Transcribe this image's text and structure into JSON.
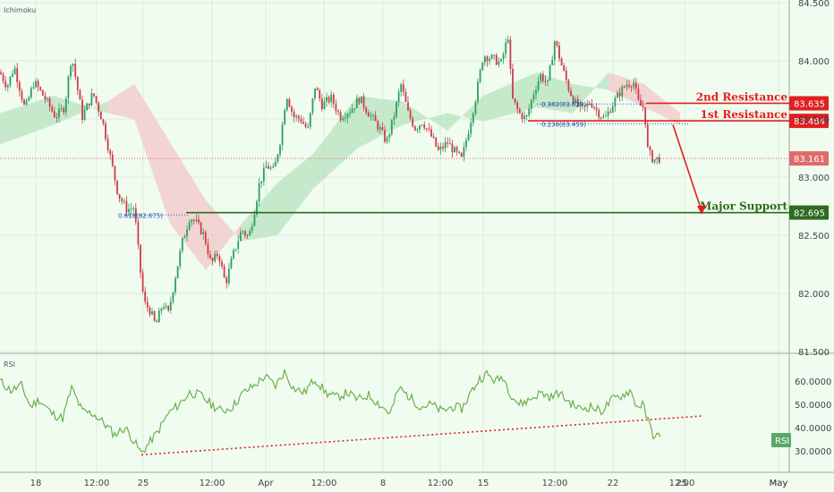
{
  "indicator_main": "Ichimoku",
  "indicator_sub": "RSI",
  "colors": {
    "background": "#f0fcf0",
    "bull": "#2e9e5e",
    "bear": "#cf3b46",
    "cloud_bull": "#b8e3c0",
    "cloud_bear": "#f3c9c9",
    "resistance": "#e02020",
    "support": "#2f6b1f",
    "rsi_line": "#6ab04c",
    "fib_dots": "#2a5bd7"
  },
  "chart_data": [
    {
      "type": "candlestick",
      "title": "",
      "legend": "Ichimoku",
      "ylim": [
        81.5,
        84.5
      ],
      "y_ticks": [
        "81.500",
        "82.000",
        "82.500",
        "83.000",
        "83.500",
        "84.000",
        "84.500"
      ],
      "x_tick_labels": [
        "18",
        "12:00",
        "25",
        "12:00",
        "Apr",
        "12:00",
        "8",
        "12:00",
        "15",
        "12:00",
        "22",
        "12:00",
        "25",
        "May"
      ],
      "anchors": [
        {
          "x": 0,
          "y": 83.9
        },
        {
          "x": 8,
          "y": 83.78
        },
        {
          "x": 16,
          "y": 83.95
        },
        {
          "x": 28,
          "y": 83.58
        },
        {
          "x": 38,
          "y": 83.82
        },
        {
          "x": 50,
          "y": 83.68
        },
        {
          "x": 62,
          "y": 83.52
        },
        {
          "x": 72,
          "y": 83.6
        },
        {
          "x": 80,
          "y": 84.05
        },
        {
          "x": 92,
          "y": 83.52
        },
        {
          "x": 104,
          "y": 83.72
        },
        {
          "x": 114,
          "y": 83.5
        },
        {
          "x": 122,
          "y": 83.22
        },
        {
          "x": 132,
          "y": 82.85
        },
        {
          "x": 142,
          "y": 82.72
        },
        {
          "x": 150,
          "y": 82.74
        },
        {
          "x": 156,
          "y": 82.25
        },
        {
          "x": 161,
          "y": 81.92
        },
        {
          "x": 168,
          "y": 81.85
        },
        {
          "x": 174,
          "y": 81.72
        },
        {
          "x": 182,
          "y": 81.92
        },
        {
          "x": 188,
          "y": 81.82
        },
        {
          "x": 196,
          "y": 82.15
        },
        {
          "x": 204,
          "y": 82.45
        },
        {
          "x": 212,
          "y": 82.66
        },
        {
          "x": 220,
          "y": 82.6
        },
        {
          "x": 228,
          "y": 82.5
        },
        {
          "x": 236,
          "y": 82.25
        },
        {
          "x": 244,
          "y": 82.35
        },
        {
          "x": 252,
          "y": 82.08
        },
        {
          "x": 260,
          "y": 82.32
        },
        {
          "x": 270,
          "y": 82.55
        },
        {
          "x": 278,
          "y": 82.48
        },
        {
          "x": 284,
          "y": 82.7
        },
        {
          "x": 290,
          "y": 82.95
        },
        {
          "x": 298,
          "y": 83.1
        },
        {
          "x": 306,
          "y": 83.05
        },
        {
          "x": 314,
          "y": 83.35
        },
        {
          "x": 320,
          "y": 83.72
        },
        {
          "x": 328,
          "y": 83.52
        },
        {
          "x": 336,
          "y": 83.5
        },
        {
          "x": 344,
          "y": 83.4
        },
        {
          "x": 352,
          "y": 83.78
        },
        {
          "x": 360,
          "y": 83.62
        },
        {
          "x": 370,
          "y": 83.68
        },
        {
          "x": 380,
          "y": 83.52
        },
        {
          "x": 392,
          "y": 83.58
        },
        {
          "x": 402,
          "y": 83.68
        },
        {
          "x": 412,
          "y": 83.55
        },
        {
          "x": 424,
          "y": 83.42
        },
        {
          "x": 432,
          "y": 83.3
        },
        {
          "x": 440,
          "y": 83.52
        },
        {
          "x": 448,
          "y": 83.8
        },
        {
          "x": 456,
          "y": 83.55
        },
        {
          "x": 464,
          "y": 83.42
        },
        {
          "x": 472,
          "y": 83.48
        },
        {
          "x": 482,
          "y": 83.35
        },
        {
          "x": 490,
          "y": 83.22
        },
        {
          "x": 500,
          "y": 83.3
        },
        {
          "x": 508,
          "y": 83.22
        },
        {
          "x": 516,
          "y": 83.15
        },
        {
          "x": 524,
          "y": 83.42
        },
        {
          "x": 532,
          "y": 83.7
        },
        {
          "x": 540,
          "y": 84.05
        },
        {
          "x": 550,
          "y": 84.02
        },
        {
          "x": 560,
          "y": 83.98
        },
        {
          "x": 568,
          "y": 84.22
        },
        {
          "x": 572,
          "y": 83.68
        },
        {
          "x": 580,
          "y": 83.55
        },
        {
          "x": 588,
          "y": 83.5
        },
        {
          "x": 596,
          "y": 83.72
        },
        {
          "x": 604,
          "y": 83.88
        },
        {
          "x": 612,
          "y": 83.8
        },
        {
          "x": 620,
          "y": 84.18
        },
        {
          "x": 628,
          "y": 83.95
        },
        {
          "x": 636,
          "y": 83.75
        },
        {
          "x": 644,
          "y": 83.62
        },
        {
          "x": 652,
          "y": 83.58
        },
        {
          "x": 660,
          "y": 83.65
        },
        {
          "x": 668,
          "y": 83.56
        },
        {
          "x": 676,
          "y": 83.5
        },
        {
          "x": 684,
          "y": 83.62
        },
        {
          "x": 692,
          "y": 83.72
        },
        {
          "x": 700,
          "y": 83.8
        },
        {
          "x": 708,
          "y": 83.82
        },
        {
          "x": 714,
          "y": 83.62
        },
        {
          "x": 720,
          "y": 83.6
        },
        {
          "x": 724,
          "y": 83.22
        },
        {
          "x": 730,
          "y": 83.15
        },
        {
          "x": 738,
          "y": 83.16
        }
      ],
      "cloud": [
        {
          "x": 0,
          "a": 83.55,
          "b": 83.28
        },
        {
          "x": 60,
          "a": 83.7,
          "b": 83.45
        },
        {
          "x": 120,
          "a": 83.55,
          "b": 83.65
        },
        {
          "x": 150,
          "a": 83.5,
          "b": 83.8
        },
        {
          "x": 190,
          "a": 82.6,
          "b": 83.3
        },
        {
          "x": 230,
          "a": 82.2,
          "b": 82.8
        },
        {
          "x": 270,
          "a": 82.6,
          "b": 82.45
        },
        {
          "x": 310,
          "a": 82.95,
          "b": 82.5
        },
        {
          "x": 350,
          "a": 83.2,
          "b": 82.9
        },
        {
          "x": 400,
          "a": 83.7,
          "b": 83.25
        },
        {
          "x": 450,
          "a": 83.65,
          "b": 83.45
        },
        {
          "x": 500,
          "a": 83.4,
          "b": 83.55
        },
        {
          "x": 540,
          "a": 83.7,
          "b": 83.48
        },
        {
          "x": 600,
          "a": 83.9,
          "b": 83.6
        },
        {
          "x": 640,
          "a": 83.8,
          "b": 83.55
        },
        {
          "x": 680,
          "a": 83.75,
          "b": 83.9
        },
        {
          "x": 720,
          "a": 83.6,
          "b": 83.8
        },
        {
          "x": 760,
          "a": 83.45,
          "b": 83.55
        }
      ],
      "levels": [
        {
          "name": "2nd Resistance",
          "value": 83.635,
          "tag": "83.635",
          "kind": "resistance"
        },
        {
          "name": "1st Resistance",
          "value": 83.484,
          "tag": "83.484",
          "kind": "resistance"
        },
        {
          "name": "Major Support",
          "value": 82.695,
          "tag": "82.695",
          "kind": "support"
        }
      ],
      "current_price": {
        "value": 83.161,
        "tag": "83.161"
      },
      "fib_labels": [
        "0.382(83.629)",
        "0.236(83.459)",
        "0.618(82.675)"
      ]
    },
    {
      "type": "line",
      "title": "",
      "legend": "RSI",
      "ylim": [
        25,
        67
      ],
      "y_ticks": [
        "30.0000",
        "40.0000",
        "50.0000",
        "60.0000"
      ],
      "tag": "RSI",
      "series": [
        {
          "values": [
            {
              "x": 0,
              "y": 60
            },
            {
              "x": 12,
              "y": 56
            },
            {
              "x": 24,
              "y": 58
            },
            {
              "x": 34,
              "y": 49
            },
            {
              "x": 44,
              "y": 52
            },
            {
              "x": 58,
              "y": 46
            },
            {
              "x": 70,
              "y": 44
            },
            {
              "x": 80,
              "y": 57
            },
            {
              "x": 92,
              "y": 47
            },
            {
              "x": 104,
              "y": 46
            },
            {
              "x": 116,
              "y": 42
            },
            {
              "x": 128,
              "y": 37
            },
            {
              "x": 140,
              "y": 40
            },
            {
              "x": 150,
              "y": 34
            },
            {
              "x": 158,
              "y": 29
            },
            {
              "x": 166,
              "y": 33
            },
            {
              "x": 176,
              "y": 38
            },
            {
              "x": 188,
              "y": 46
            },
            {
              "x": 200,
              "y": 50
            },
            {
              "x": 212,
              "y": 55
            },
            {
              "x": 224,
              "y": 54
            },
            {
              "x": 236,
              "y": 50
            },
            {
              "x": 248,
              "y": 47
            },
            {
              "x": 260,
              "y": 49
            },
            {
              "x": 272,
              "y": 55
            },
            {
              "x": 284,
              "y": 58
            },
            {
              "x": 296,
              "y": 62
            },
            {
              "x": 308,
              "y": 58
            },
            {
              "x": 318,
              "y": 64
            },
            {
              "x": 328,
              "y": 57
            },
            {
              "x": 340,
              "y": 55
            },
            {
              "x": 352,
              "y": 61
            },
            {
              "x": 364,
              "y": 55
            },
            {
              "x": 376,
              "y": 53
            },
            {
              "x": 388,
              "y": 55
            },
            {
              "x": 400,
              "y": 52
            },
            {
              "x": 412,
              "y": 54
            },
            {
              "x": 424,
              "y": 50
            },
            {
              "x": 436,
              "y": 46
            },
            {
              "x": 446,
              "y": 57
            },
            {
              "x": 458,
              "y": 53
            },
            {
              "x": 470,
              "y": 49
            },
            {
              "x": 482,
              "y": 50
            },
            {
              "x": 494,
              "y": 47
            },
            {
              "x": 506,
              "y": 49
            },
            {
              "x": 516,
              "y": 48
            },
            {
              "x": 526,
              "y": 55
            },
            {
              "x": 536,
              "y": 61
            },
            {
              "x": 544,
              "y": 63
            },
            {
              "x": 554,
              "y": 60
            },
            {
              "x": 562,
              "y": 62
            },
            {
              "x": 570,
              "y": 55
            },
            {
              "x": 580,
              "y": 50
            },
            {
              "x": 592,
              "y": 52
            },
            {
              "x": 604,
              "y": 55
            },
            {
              "x": 616,
              "y": 53
            },
            {
              "x": 624,
              "y": 55
            },
            {
              "x": 636,
              "y": 51
            },
            {
              "x": 648,
              "y": 48
            },
            {
              "x": 660,
              "y": 49
            },
            {
              "x": 672,
              "y": 47
            },
            {
              "x": 684,
              "y": 52
            },
            {
              "x": 696,
              "y": 54
            },
            {
              "x": 704,
              "y": 56
            },
            {
              "x": 712,
              "y": 49
            },
            {
              "x": 718,
              "y": 50
            },
            {
              "x": 724,
              "y": 43
            },
            {
              "x": 730,
              "y": 37
            },
            {
              "x": 738,
              "y": 36
            }
          ]
        }
      ],
      "trendline": {
        "x1": 158,
        "y1": 28.3,
        "x2": 785,
        "y2": 45
      }
    }
  ]
}
